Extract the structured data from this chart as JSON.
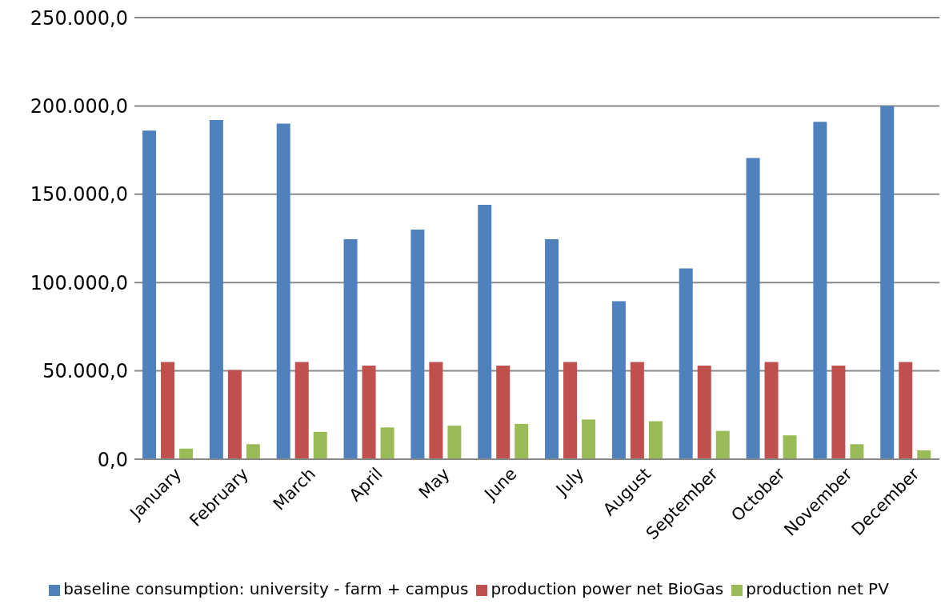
{
  "chart_data": {
    "type": "bar",
    "categories": [
      "January",
      "February",
      "March",
      "April",
      "May",
      "June",
      "July",
      "August",
      "September",
      "October",
      "November",
      "December"
    ],
    "series": [
      {
        "name": "baseline consumption: university - farm + campus",
        "color": "#4f81bd",
        "values": [
          186000,
          192000,
          190000,
          124500,
          130000,
          144000,
          124500,
          89500,
          108000,
          170500,
          191000,
          200000
        ]
      },
      {
        "name": "production power net BioGas",
        "color": "#c0504d",
        "values": [
          55000,
          50500,
          55000,
          53000,
          55000,
          53000,
          55000,
          55000,
          53000,
          55000,
          53000,
          55000
        ]
      },
      {
        "name": "production net PV",
        "color": "#9bbb59",
        "values": [
          6000,
          8500,
          15500,
          18000,
          19000,
          20000,
          22500,
          21500,
          16000,
          13500,
          8500,
          5000
        ]
      }
    ],
    "ylim": [
      0,
      250000
    ],
    "yticks": [
      {
        "value": 0,
        "label": "0,0"
      },
      {
        "value": 50000,
        "label": "50.000,0"
      },
      {
        "value": 100000,
        "label": "100.000,0"
      },
      {
        "value": 150000,
        "label": "150.000,0"
      },
      {
        "value": 200000,
        "label": "200.000,0"
      },
      {
        "value": 250000,
        "label": "250.000,0"
      }
    ],
    "grid": "y",
    "legend": "bottom"
  }
}
